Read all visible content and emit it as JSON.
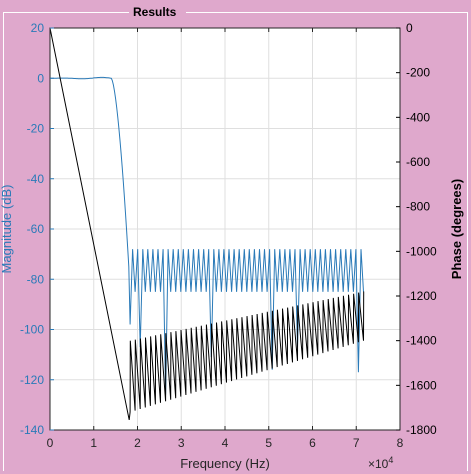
{
  "panel": {
    "title": "Results"
  },
  "chart_data": {
    "type": "line",
    "title": "",
    "xlabel": "Frequency (Hz)",
    "ylabel_left": "Magnitude (dB)",
    "ylabel_right": "Phase (degrees)",
    "x_multiplier": "×10",
    "x_multiplier_exp": "4",
    "xlim": [
      0,
      80000
    ],
    "ylim_left": [
      -140,
      20
    ],
    "ylim_right": [
      -1800,
      0
    ],
    "x_ticks": [
      0,
      1,
      2,
      3,
      4,
      5,
      6,
      7,
      8
    ],
    "y_ticks_left": [
      20,
      0,
      -20,
      -40,
      -60,
      -80,
      -100,
      -120,
      -140
    ],
    "y_ticks_right": [
      0,
      -200,
      -400,
      -600,
      -800,
      -1000,
      -1200,
      -1400,
      -1600,
      -1800
    ],
    "grid": true,
    "colors": {
      "magnitude": "#2a7ab8",
      "phase": "#000000",
      "left_axis": "#2a7ab8",
      "right_axis": "#000000"
    },
    "series": [
      {
        "name": "Magnitude",
        "axis": "left",
        "passband_edge_hz": 14000,
        "stopband_start_hz": 18100,
        "stopband_end_hz": 72000,
        "passband_db": 0,
        "stopband_peak_db": -68,
        "stopband_null_db": -85,
        "deep_nulls": [
          {
            "x": 18300,
            "y": -98
          },
          {
            "x": 20300,
            "y": -107
          },
          {
            "x": 26000,
            "y": -126
          },
          {
            "x": 36800,
            "y": -111
          },
          {
            "x": 50400,
            "y": -116
          },
          {
            "x": 56600,
            "y": -107
          },
          {
            "x": 70400,
            "y": -117
          }
        ],
        "null_spacing_hz": 1160
      },
      {
        "name": "Phase",
        "axis": "right",
        "points": [
          [
            0,
            0
          ],
          [
            18100,
            -1755
          ]
        ],
        "sawtooth_start_hz": 18300,
        "sawtooth_end_hz": 72000,
        "sawtooth_low_start": -1720,
        "sawtooth_low_end": -1400,
        "sawtooth_high_start": -1400,
        "sawtooth_high_end": -1180
      }
    ]
  }
}
